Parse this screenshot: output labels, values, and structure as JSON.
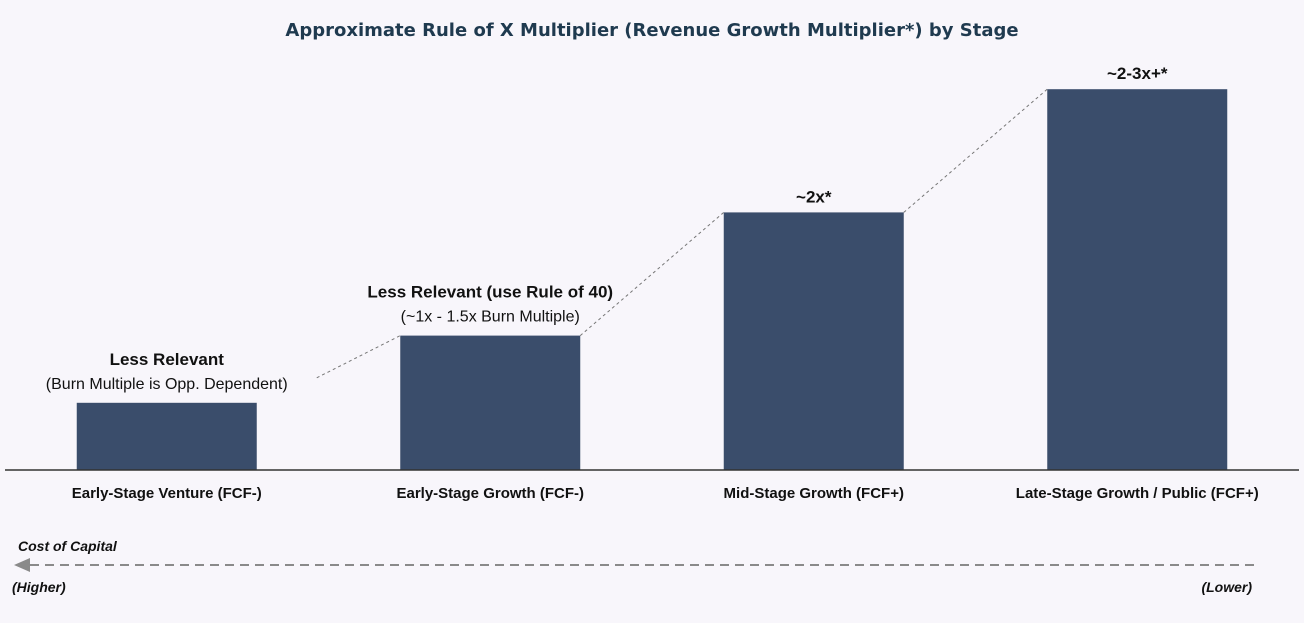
{
  "chart_data": {
    "type": "bar",
    "title": "Approximate Rule of X Multiplier (Revenue Growth Multiplier*) by Stage",
    "categories": [
      "Early-Stage Venture (FCF-)",
      "Early-Stage Growth (FCF-)",
      "Mid-Stage Growth (FCF+)",
      "Late-Stage Growth / Public (FCF+)"
    ],
    "values": [
      0.6,
      1.2,
      2.3,
      3.4
    ],
    "ylim": [
      0,
      3.75
    ],
    "bar_color": "#3a4d6b",
    "data_labels": [
      {
        "main": "Less Relevant",
        "sub": "(Burn Multiple is Opp. Dependent)"
      },
      {
        "main": "Less Relevant (use Rule of 40)",
        "sub": "(~1x - 1.5x Burn Multiple)"
      },
      {
        "main": "~2x*",
        "sub": ""
      },
      {
        "main": "~2-3x+*",
        "sub": ""
      }
    ],
    "axis_arrow": {
      "label": "Cost of Capital",
      "left_label": "(Higher)",
      "right_label": "(Lower)"
    }
  }
}
